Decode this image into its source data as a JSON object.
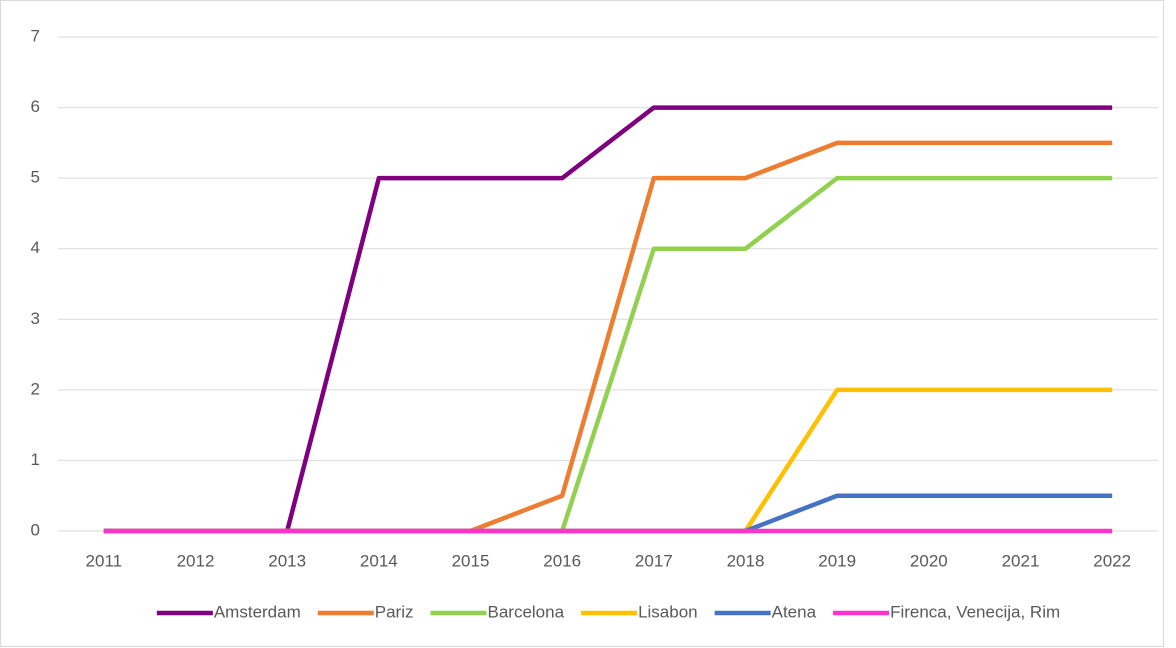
{
  "chart_data": {
    "type": "line",
    "categories": [
      "2011",
      "2012",
      "2013",
      "2014",
      "2015",
      "2016",
      "2017",
      "2018",
      "2019",
      "2020",
      "2021",
      "2022"
    ],
    "series": [
      {
        "name": "Amsterdam",
        "color": "#7f007f",
        "values": [
          0,
          0,
          0,
          5,
          5,
          5,
          6,
          6,
          6,
          6,
          6,
          6
        ]
      },
      {
        "name": "Pariz",
        "color": "#ed7d31",
        "values": [
          0,
          0,
          0,
          0,
          0,
          0.5,
          5,
          5,
          5.5,
          5.5,
          5.5,
          5.5
        ]
      },
      {
        "name": "Barcelona",
        "color": "#92d050",
        "values": [
          0,
          0,
          0,
          0,
          0,
          0,
          4,
          4,
          5,
          5,
          5,
          5
        ]
      },
      {
        "name": "Lisabon",
        "color": "#ffc000",
        "values": [
          0,
          0,
          0,
          0,
          0,
          0,
          0,
          0,
          2,
          2,
          2,
          2
        ]
      },
      {
        "name": "Atena",
        "color": "#4472c4",
        "values": [
          0,
          0,
          0,
          0,
          0,
          0,
          0,
          0,
          0.5,
          0.5,
          0.5,
          0.5
        ]
      },
      {
        "name": "Firenca, Venecija, Rim",
        "color": "#ff33cc",
        "values": [
          0,
          0,
          0,
          0,
          0,
          0,
          0,
          0,
          0,
          0,
          0,
          0
        ]
      }
    ],
    "ylim": [
      0,
      7
    ],
    "yticks": [
      0,
      1,
      2,
      3,
      4,
      5,
      6,
      7
    ],
    "grid": true,
    "legend": "bottom"
  }
}
